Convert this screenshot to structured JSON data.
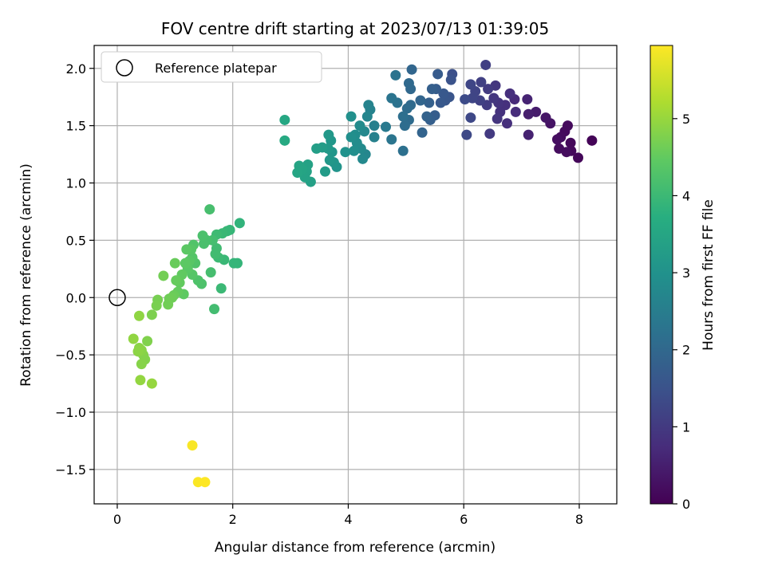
{
  "chart_data": {
    "type": "scatter",
    "title": "FOV centre drift starting at 2023/07/13 01:39:05",
    "xlabel": "Angular distance from reference (arcmin)",
    "ylabel": "Rotation from reference (arcmin)",
    "xlim": [
      -0.4,
      8.65
    ],
    "ylim": [
      -1.8,
      2.2
    ],
    "xticks": [
      0,
      2,
      4,
      6,
      8
    ],
    "yticks": [
      -1.5,
      -1.0,
      -0.5,
      0.0,
      0.5,
      1.0,
      1.5,
      2.0
    ],
    "xtick_labels": [
      "0",
      "2",
      "4",
      "6",
      "8"
    ],
    "ytick_labels": [
      "−1.5",
      "−1.0",
      "−0.5",
      "0.0",
      "0.5",
      "1.0",
      "1.5",
      "2.0"
    ],
    "grid": true,
    "colormap": "viridis",
    "legend": {
      "placement": "top-left",
      "entries": [
        {
          "label": "Reference platepar",
          "marker": "open-circle",
          "color": "#000000"
        }
      ]
    },
    "colorbar": {
      "label": "Hours from first FF file",
      "range": [
        0,
        5.95
      ],
      "ticks": [
        0,
        1,
        2,
        3,
        4,
        5
      ],
      "tick_labels": [
        "0",
        "1",
        "2",
        "3",
        "4",
        "5"
      ]
    },
    "reference_point": {
      "x": 0.0,
      "y": 0.0
    },
    "series": [
      {
        "points": [
          {
            "x": 8.22,
            "y": 1.37,
            "c": 0.05
          },
          {
            "x": 7.98,
            "y": 1.22,
            "c": 0.1
          },
          {
            "x": 7.85,
            "y": 1.35,
            "c": 0.12
          },
          {
            "x": 7.86,
            "y": 1.28,
            "c": 0.14
          },
          {
            "x": 7.8,
            "y": 1.5,
            "c": 0.15
          },
          {
            "x": 7.75,
            "y": 1.45,
            "c": 0.16
          },
          {
            "x": 7.68,
            "y": 1.4,
            "c": 0.18
          },
          {
            "x": 7.65,
            "y": 1.3,
            "c": 0.2
          },
          {
            "x": 7.62,
            "y": 1.38,
            "c": 0.22
          },
          {
            "x": 7.78,
            "y": 1.27,
            "c": 0.2
          },
          {
            "x": 7.5,
            "y": 1.52,
            "c": 0.3
          },
          {
            "x": 7.42,
            "y": 1.57,
            "c": 0.35
          },
          {
            "x": 7.25,
            "y": 1.62,
            "c": 0.45
          },
          {
            "x": 7.12,
            "y": 1.6,
            "c": 0.5
          },
          {
            "x": 7.12,
            "y": 1.42,
            "c": 0.55
          },
          {
            "x": 7.1,
            "y": 1.73,
            "c": 0.6
          },
          {
            "x": 6.88,
            "y": 1.73,
            "c": 0.7
          },
          {
            "x": 6.9,
            "y": 1.62,
            "c": 0.75
          },
          {
            "x": 6.8,
            "y": 1.78,
            "c": 0.78
          },
          {
            "x": 6.75,
            "y": 1.52,
            "c": 0.8
          },
          {
            "x": 6.72,
            "y": 1.68,
            "c": 0.82
          },
          {
            "x": 6.63,
            "y": 1.62,
            "c": 0.85
          },
          {
            "x": 6.6,
            "y": 1.7,
            "c": 0.88
          },
          {
            "x": 6.58,
            "y": 1.56,
            "c": 0.9
          },
          {
            "x": 6.55,
            "y": 1.85,
            "c": 0.92
          },
          {
            "x": 6.52,
            "y": 1.74,
            "c": 0.95
          },
          {
            "x": 6.45,
            "y": 1.43,
            "c": 1.0
          },
          {
            "x": 6.42,
            "y": 1.82,
            "c": 1.02
          },
          {
            "x": 6.4,
            "y": 1.68,
            "c": 1.05
          },
          {
            "x": 6.38,
            "y": 2.03,
            "c": 1.1
          },
          {
            "x": 6.3,
            "y": 1.88,
            "c": 1.12
          },
          {
            "x": 6.28,
            "y": 1.72,
            "c": 1.15
          },
          {
            "x": 6.2,
            "y": 1.8,
            "c": 1.2
          },
          {
            "x": 6.15,
            "y": 1.74,
            "c": 1.22
          },
          {
            "x": 6.12,
            "y": 1.86,
            "c": 1.25
          },
          {
            "x": 6.12,
            "y": 1.57,
            "c": 1.28
          },
          {
            "x": 6.05,
            "y": 1.42,
            "c": 1.3
          },
          {
            "x": 6.02,
            "y": 1.73,
            "c": 1.35
          },
          {
            "x": 5.8,
            "y": 1.95,
            "c": 1.45
          },
          {
            "x": 5.78,
            "y": 1.9,
            "c": 1.5
          },
          {
            "x": 5.75,
            "y": 1.75,
            "c": 1.55
          },
          {
            "x": 5.68,
            "y": 1.72,
            "c": 1.6
          },
          {
            "x": 5.65,
            "y": 1.78,
            "c": 1.62
          },
          {
            "x": 5.6,
            "y": 1.7,
            "c": 1.65
          },
          {
            "x": 5.55,
            "y": 1.95,
            "c": 1.7
          },
          {
            "x": 5.52,
            "y": 1.82,
            "c": 1.72
          },
          {
            "x": 5.5,
            "y": 1.59,
            "c": 1.75
          },
          {
            "x": 5.45,
            "y": 1.82,
            "c": 1.78
          },
          {
            "x": 5.42,
            "y": 1.55,
            "c": 1.8
          },
          {
            "x": 5.4,
            "y": 1.7,
            "c": 1.82
          },
          {
            "x": 5.36,
            "y": 1.58,
            "c": 1.85
          },
          {
            "x": 5.28,
            "y": 1.44,
            "c": 1.9
          },
          {
            "x": 5.25,
            "y": 1.72,
            "c": 1.92
          },
          {
            "x": 5.1,
            "y": 1.99,
            "c": 1.95
          },
          {
            "x": 5.08,
            "y": 1.82,
            "c": 2.0
          },
          {
            "x": 5.05,
            "y": 1.87,
            "c": 2.02
          },
          {
            "x": 5.08,
            "y": 1.68,
            "c": 2.05
          },
          {
            "x": 5.05,
            "y": 1.55,
            "c": 2.08
          },
          {
            "x": 5.02,
            "y": 1.65,
            "c": 2.1
          },
          {
            "x": 4.98,
            "y": 1.5,
            "c": 2.12
          },
          {
            "x": 4.95,
            "y": 1.58,
            "c": 2.15
          },
          {
            "x": 4.95,
            "y": 1.28,
            "c": 2.18
          },
          {
            "x": 4.85,
            "y": 1.7,
            "c": 2.22
          },
          {
            "x": 4.82,
            "y": 1.94,
            "c": 2.25
          },
          {
            "x": 4.75,
            "y": 1.74,
            "c": 2.28
          },
          {
            "x": 4.75,
            "y": 1.38,
            "c": 2.3
          },
          {
            "x": 4.65,
            "y": 1.49,
            "c": 2.4
          },
          {
            "x": 4.45,
            "y": 1.5,
            "c": 2.55
          },
          {
            "x": 4.45,
            "y": 1.4,
            "c": 2.58
          },
          {
            "x": 4.38,
            "y": 1.64,
            "c": 2.62
          },
          {
            "x": 4.35,
            "y": 1.68,
            "c": 2.65
          },
          {
            "x": 4.33,
            "y": 1.58,
            "c": 2.68
          },
          {
            "x": 4.3,
            "y": 1.25,
            "c": 2.72
          },
          {
            "x": 4.28,
            "y": 1.45,
            "c": 2.75
          },
          {
            "x": 4.25,
            "y": 1.21,
            "c": 2.78
          },
          {
            "x": 4.22,
            "y": 1.3,
            "c": 2.8
          },
          {
            "x": 4.2,
            "y": 1.5,
            "c": 2.82
          },
          {
            "x": 4.15,
            "y": 1.35,
            "c": 2.85
          },
          {
            "x": 4.12,
            "y": 1.42,
            "c": 2.88
          },
          {
            "x": 4.1,
            "y": 1.28,
            "c": 2.9
          },
          {
            "x": 4.05,
            "y": 1.4,
            "c": 2.92
          },
          {
            "x": 4.05,
            "y": 1.58,
            "c": 2.94
          },
          {
            "x": 3.95,
            "y": 1.27,
            "c": 3.0
          },
          {
            "x": 3.8,
            "y": 1.14,
            "c": 3.05
          },
          {
            "x": 3.75,
            "y": 1.18,
            "c": 3.08
          },
          {
            "x": 3.72,
            "y": 1.27,
            "c": 3.1
          },
          {
            "x": 3.7,
            "y": 1.37,
            "c": 3.12
          },
          {
            "x": 3.68,
            "y": 1.2,
            "c": 3.14
          },
          {
            "x": 3.66,
            "y": 1.42,
            "c": 3.16
          },
          {
            "x": 3.65,
            "y": 1.3,
            "c": 3.18
          },
          {
            "x": 3.6,
            "y": 1.1,
            "c": 3.22
          },
          {
            "x": 3.55,
            "y": 1.31,
            "c": 3.25
          },
          {
            "x": 3.45,
            "y": 1.3,
            "c": 3.3
          },
          {
            "x": 3.35,
            "y": 1.01,
            "c": 3.35
          },
          {
            "x": 3.3,
            "y": 1.16,
            "c": 3.38
          },
          {
            "x": 3.28,
            "y": 1.1,
            "c": 3.4
          },
          {
            "x": 3.25,
            "y": 1.05,
            "c": 3.42
          },
          {
            "x": 3.2,
            "y": 1.12,
            "c": 3.45
          },
          {
            "x": 3.15,
            "y": 1.15,
            "c": 3.47
          },
          {
            "x": 3.12,
            "y": 1.09,
            "c": 3.5
          },
          {
            "x": 2.9,
            "y": 1.55,
            "c": 3.55
          },
          {
            "x": 2.9,
            "y": 1.37,
            "c": 3.58
          },
          {
            "x": 2.12,
            "y": 0.65,
            "c": 3.85
          },
          {
            "x": 2.08,
            "y": 0.3,
            "c": 3.88
          },
          {
            "x": 2.02,
            "y": 0.3,
            "c": 3.9
          },
          {
            "x": 1.95,
            "y": 0.59,
            "c": 3.92
          },
          {
            "x": 1.9,
            "y": 0.58,
            "c": 3.94
          },
          {
            "x": 1.85,
            "y": 0.33,
            "c": 3.96
          },
          {
            "x": 1.82,
            "y": 0.56,
            "c": 3.98
          },
          {
            "x": 1.8,
            "y": 0.08,
            "c": 4.0
          },
          {
            "x": 1.75,
            "y": 0.35,
            "c": 4.02
          },
          {
            "x": 1.72,
            "y": 0.55,
            "c": 4.04
          },
          {
            "x": 1.72,
            "y": 0.43,
            "c": 4.06
          },
          {
            "x": 1.7,
            "y": 0.38,
            "c": 4.08
          },
          {
            "x": 1.68,
            "y": -0.1,
            "c": 4.1
          },
          {
            "x": 1.65,
            "y": 0.5,
            "c": 4.12
          },
          {
            "x": 1.62,
            "y": 0.22,
            "c": 4.14
          },
          {
            "x": 1.6,
            "y": 0.77,
            "c": 4.16
          },
          {
            "x": 1.55,
            "y": 0.5,
            "c": 4.18
          },
          {
            "x": 1.5,
            "y": 0.47,
            "c": 4.2
          },
          {
            "x": 1.48,
            "y": 0.54,
            "c": 4.22
          },
          {
            "x": 1.46,
            "y": 0.12,
            "c": 4.24
          },
          {
            "x": 1.4,
            "y": 0.15,
            "c": 4.26
          },
          {
            "x": 1.35,
            "y": 0.3,
            "c": 4.28
          },
          {
            "x": 1.32,
            "y": 0.46,
            "c": 4.3
          },
          {
            "x": 1.3,
            "y": 0.35,
            "c": 4.32
          },
          {
            "x": 1.3,
            "y": 0.2,
            "c": 4.34
          },
          {
            "x": 1.28,
            "y": 0.42,
            "c": 4.36
          },
          {
            "x": 1.25,
            "y": 0.32,
            "c": 4.38
          },
          {
            "x": 1.22,
            "y": 0.25,
            "c": 4.4
          },
          {
            "x": 1.2,
            "y": 0.42,
            "c": 4.42
          },
          {
            "x": 1.18,
            "y": 0.3,
            "c": 4.44
          },
          {
            "x": 1.15,
            "y": 0.03,
            "c": 4.46
          },
          {
            "x": 1.12,
            "y": 0.2,
            "c": 4.48
          },
          {
            "x": 1.08,
            "y": 0.13,
            "c": 4.5
          },
          {
            "x": 1.05,
            "y": 0.05,
            "c": 4.52
          },
          {
            "x": 1.02,
            "y": 0.15,
            "c": 4.54
          },
          {
            "x": 1.0,
            "y": 0.3,
            "c": 4.56
          },
          {
            "x": 0.98,
            "y": 0.02,
            "c": 4.58
          },
          {
            "x": 0.95,
            "y": 0.0,
            "c": 4.6
          },
          {
            "x": 0.9,
            "y": -0.01,
            "c": 4.62
          },
          {
            "x": 0.88,
            "y": -0.06,
            "c": 4.64
          },
          {
            "x": 0.8,
            "y": 0.19,
            "c": 4.66
          },
          {
            "x": 0.7,
            "y": -0.02,
            "c": 4.7
          },
          {
            "x": 0.68,
            "y": -0.07,
            "c": 4.72
          },
          {
            "x": 0.6,
            "y": -0.15,
            "c": 4.75
          },
          {
            "x": 0.52,
            "y": -0.38,
            "c": 4.78
          },
          {
            "x": 0.48,
            "y": -0.54,
            "c": 4.8
          },
          {
            "x": 0.45,
            "y": -0.5,
            "c": 4.82
          },
          {
            "x": 0.42,
            "y": -0.58,
            "c": 4.84
          },
          {
            "x": 0.42,
            "y": -0.46,
            "c": 4.86
          },
          {
            "x": 0.38,
            "y": -0.44,
            "c": 4.88
          },
          {
            "x": 0.36,
            "y": -0.47,
            "c": 4.9
          },
          {
            "x": 0.38,
            "y": -0.16,
            "c": 4.92
          },
          {
            "x": 0.28,
            "y": -0.36,
            "c": 4.94
          },
          {
            "x": 0.4,
            "y": -0.72,
            "c": 4.96
          },
          {
            "x": 0.6,
            "y": -0.75,
            "c": 4.98
          },
          {
            "x": 1.3,
            "y": -1.29,
            "c": 5.9
          },
          {
            "x": 1.4,
            "y": -1.61,
            "c": 5.92
          },
          {
            "x": 1.52,
            "y": -1.61,
            "c": 5.95
          }
        ]
      }
    ]
  }
}
